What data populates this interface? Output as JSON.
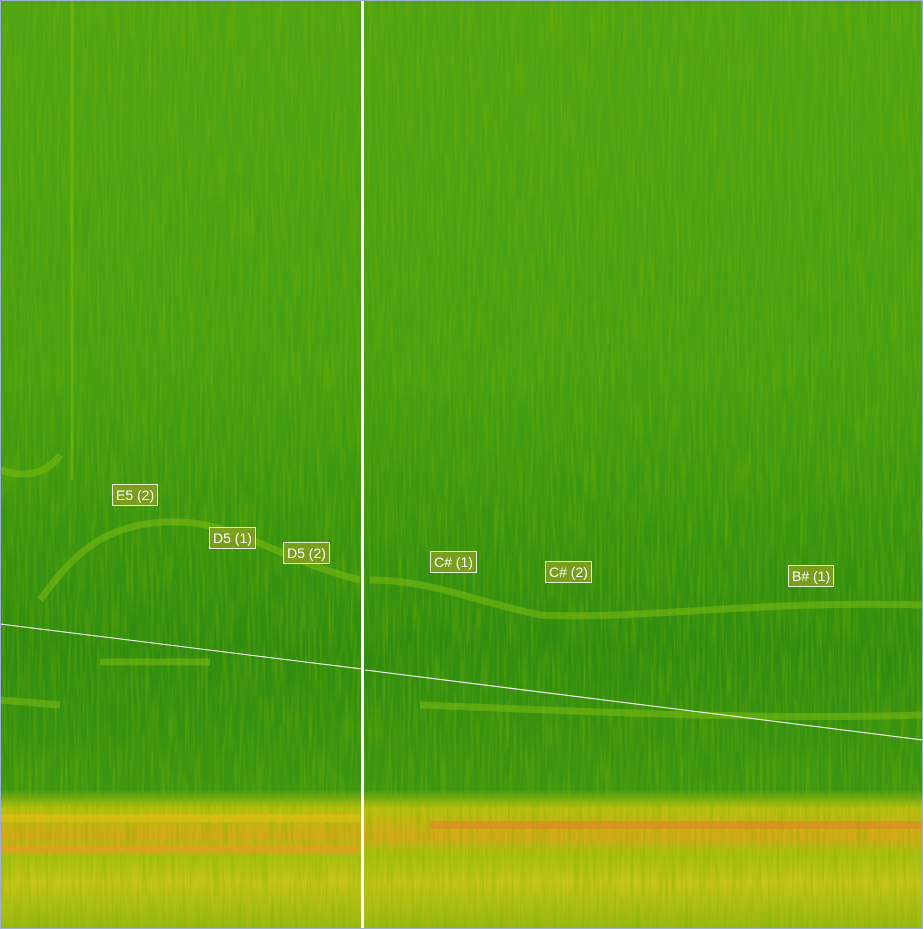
{
  "view": "spectrogram",
  "colors": {
    "low": "#2f8a0c",
    "mid": "#5aaa10",
    "high": "#c8b000",
    "peak": "#d88a10",
    "marker": "#ffffff"
  },
  "notes": [
    {
      "label": "E5 (2)"
    },
    {
      "label": "D5 (1)"
    },
    {
      "label": "D5 (2)"
    },
    {
      "label": "C# (1)"
    },
    {
      "label": "C# (2)"
    },
    {
      "label": "B# (1)"
    }
  ]
}
